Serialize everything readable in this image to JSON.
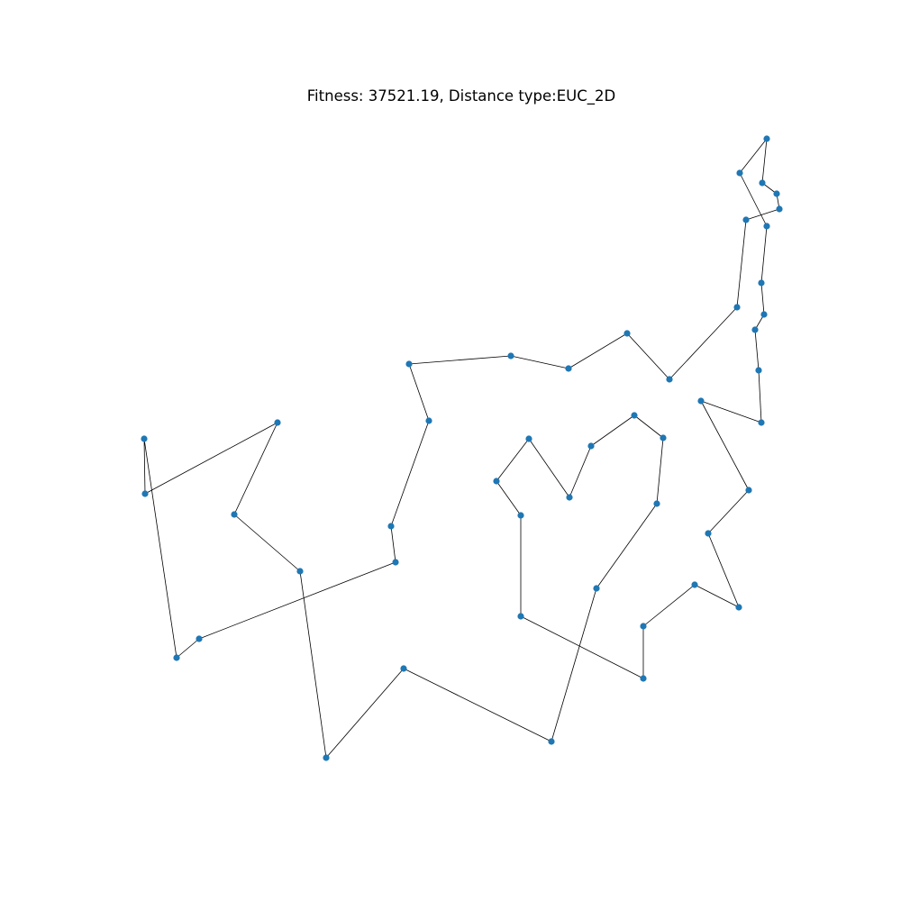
{
  "chart_data": {
    "type": "line",
    "title": "Fitness: 37521.19, Distance type:EUC_2D",
    "xlabel": "",
    "ylabel": "",
    "grid": false,
    "axes_visible": false,
    "point_color": "#1f77b4",
    "line_color": "#000000",
    "closed_path": true,
    "route": [
      [
        160,
        487
      ],
      [
        161,
        548
      ],
      [
        308,
        469
      ],
      [
        260,
        571
      ],
      [
        333,
        634
      ],
      [
        362,
        841
      ],
      [
        448,
        742
      ],
      [
        612,
        823
      ],
      [
        662,
        653
      ],
      [
        729,
        559
      ],
      [
        736,
        486
      ],
      [
        704,
        461
      ],
      [
        656,
        495
      ],
      [
        632,
        552
      ],
      [
        587,
        487
      ],
      [
        551,
        534
      ],
      [
        578,
        572
      ],
      [
        578,
        684
      ],
      [
        714,
        753
      ],
      [
        714,
        695
      ],
      [
        771,
        649
      ],
      [
        820,
        674
      ],
      [
        786,
        592
      ],
      [
        831,
        544
      ],
      [
        778,
        445
      ],
      [
        845,
        469
      ],
      [
        842,
        411
      ],
      [
        838,
        366
      ],
      [
        848,
        349
      ],
      [
        845,
        314
      ],
      [
        851,
        251
      ],
      [
        821,
        192
      ],
      [
        851,
        154
      ],
      [
        846,
        203
      ],
      [
        862,
        215
      ],
      [
        865,
        232
      ],
      [
        828,
        244
      ],
      [
        818,
        341
      ],
      [
        743,
        421
      ],
      [
        696,
        370
      ],
      [
        631,
        409
      ],
      [
        567,
        395
      ],
      [
        454,
        404
      ],
      [
        476,
        467
      ],
      [
        434,
        584
      ],
      [
        439,
        624
      ],
      [
        221,
        709
      ],
      [
        196,
        730
      ]
    ]
  }
}
